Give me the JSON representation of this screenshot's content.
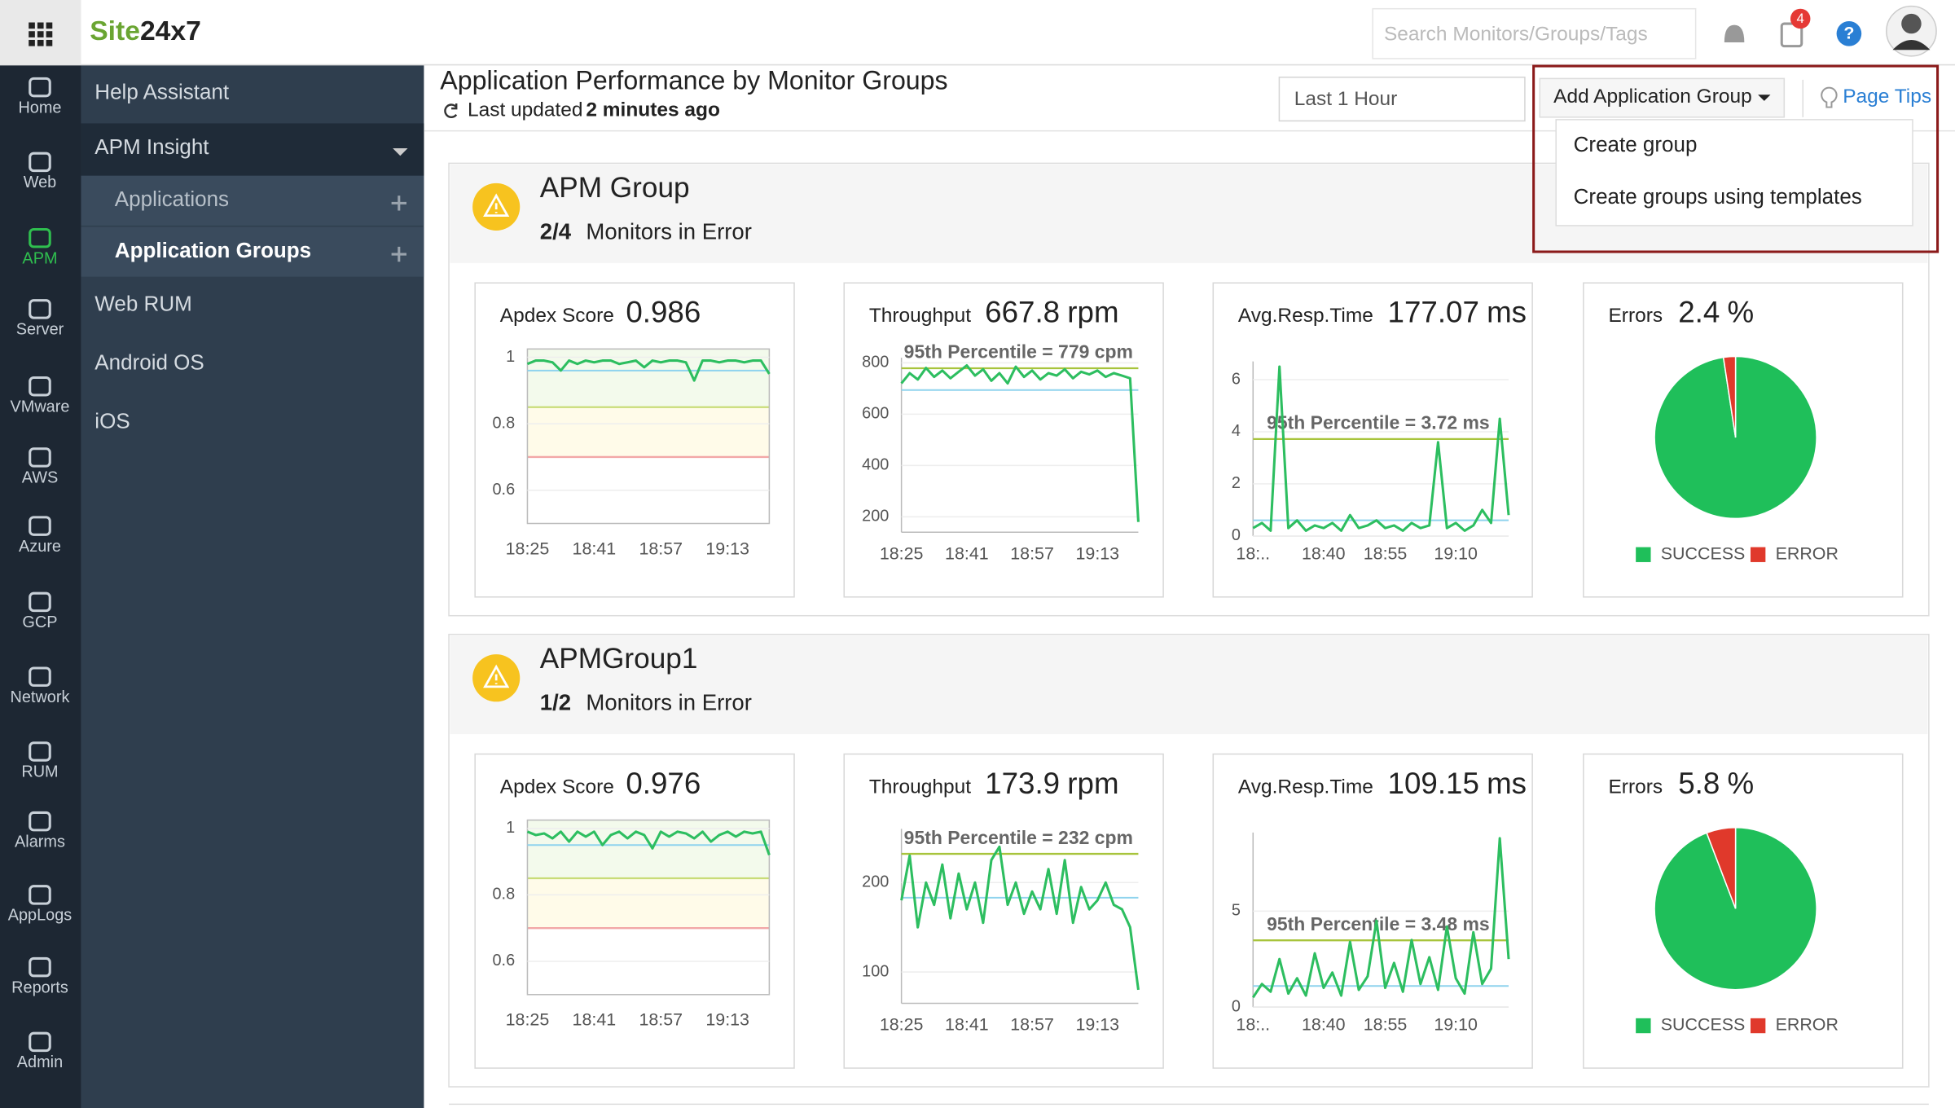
{
  "topbar": {
    "logo": {
      "prefix": "Site",
      "suffix": "24x7"
    },
    "search_placeholder": "Search Monitors/Groups/Tags",
    "notification_count": 4,
    "help_icon": "?"
  },
  "nav": [
    {
      "label": "Home"
    },
    {
      "label": "Web"
    },
    {
      "label": "APM",
      "active": true
    },
    {
      "label": "Server"
    },
    {
      "label": "VMware"
    },
    {
      "label": "AWS"
    },
    {
      "label": "Azure"
    },
    {
      "label": "GCP"
    },
    {
      "label": "Network"
    },
    {
      "label": "RUM"
    },
    {
      "label": "Alarms"
    },
    {
      "label": "AppLogs"
    },
    {
      "label": "Reports"
    },
    {
      "label": "Admin"
    }
  ],
  "menu": [
    {
      "label": "Help Assistant"
    },
    {
      "label": "APM Insight",
      "expanded": true
    },
    {
      "label": "Applications",
      "sub": true
    },
    {
      "label": "Application Groups",
      "sub": true,
      "selected": true
    },
    {
      "label": "Web RUM"
    },
    {
      "label": "Android OS"
    },
    {
      "label": "iOS"
    }
  ],
  "header": {
    "title": "Application Performance by Monitor Groups",
    "last_updated_label": "Last updated",
    "last_updated_value": "2 minutes ago",
    "time_range": "Last 1 Hour",
    "add_button": "Add Application Group",
    "page_tips": "Page Tips",
    "dropdown": [
      "Create group",
      "Create groups using templates"
    ]
  },
  "groups": [
    {
      "name": "APM Group",
      "error_count": "2/4",
      "monitors_label": "Monitors in Error",
      "widgets": [
        {
          "label": "Apdex Score",
          "value": 0.986,
          "chart": {
            "type": "line",
            "color": "#2dbe60",
            "ylim": [
              0.5,
              1.025
            ],
            "yticks": [
              1,
              0.8,
              0.6
            ],
            "grid": true,
            "average": 0.96,
            "thresholds": [
              {
                "value": 0.85,
                "color": "#c8dc78"
              },
              {
                "value": 0.7,
                "color": "#f2a7a7"
              }
            ],
            "categories": [
              "18:25",
              null,
              null,
              null,
              null,
              null,
              null,
              null,
              "18:41",
              null,
              null,
              null,
              null,
              null,
              null,
              null,
              "18:57",
              null,
              null,
              null,
              null,
              null,
              null,
              null,
              "19:13",
              null,
              null,
              null,
              null,
              null
            ],
            "values": [
              0.98,
              0.99,
              0.99,
              0.985,
              0.96,
              0.99,
              0.98,
              0.99,
              0.985,
              0.99,
              0.99,
              0.98,
              0.985,
              0.99,
              0.97,
              0.99,
              0.985,
              0.99,
              0.99,
              0.985,
              0.93,
              0.99,
              0.99,
              0.985,
              0.99,
              0.99,
              0.985,
              0.99,
              0.99,
              0.95
            ]
          }
        },
        {
          "label": "Throughput",
          "value": 667.8,
          "unit": "rpm",
          "chart": {
            "type": "line",
            "color": "#2dbe60",
            "ylim": [
              140,
              820
            ],
            "yticks": [
              800,
              600,
              400,
              200
            ],
            "grid": true,
            "average": 694,
            "percentile": {
              "value": 779,
              "label": "95th Percentile = 779 cpm"
            },
            "categories": [
              "18:25",
              null,
              null,
              null,
              null,
              null,
              null,
              null,
              "18:41",
              null,
              null,
              null,
              null,
              null,
              null,
              null,
              "18:57",
              null,
              null,
              null,
              null,
              null,
              null,
              null,
              "19:13",
              null,
              null,
              null,
              null,
              null
            ],
            "values": [
              720,
              760,
              735,
              780,
              745,
              770,
              740,
              765,
              790,
              750,
              775,
              730,
              760,
              720,
              785,
              745,
              770,
              735,
              760,
              750,
              775,
              740,
              765,
              755,
              770,
              745,
              760,
              750,
              740,
              180
            ]
          }
        },
        {
          "label": "Avg.Resp.Time",
          "value": 177.07,
          "unit": "ms",
          "chart": {
            "type": "line",
            "color": "#2dbe60",
            "ylim": [
              0,
              6.7
            ],
            "yticks": [
              6,
              4,
              2,
              0
            ],
            "grid": true,
            "average": 0.6,
            "percentile": {
              "value": 3.72,
              "label": "95th Percentile = 3.72 ms"
            },
            "categories": [
              "18:..",
              null,
              null,
              null,
              null,
              null,
              null,
              null,
              "18:40",
              null,
              null,
              null,
              null,
              null,
              null,
              "18:55",
              null,
              null,
              null,
              null,
              null,
              null,
              null,
              "19:10",
              null,
              null,
              null,
              null,
              null,
              null
            ],
            "values": [
              0.3,
              0.5,
              0.2,
              6.5,
              0.3,
              0.6,
              0.2,
              0.4,
              0.3,
              0.5,
              0.2,
              0.8,
              0.3,
              0.4,
              0.6,
              0.3,
              0.4,
              0.2,
              0.5,
              0.3,
              0.4,
              3.6,
              0.3,
              0.5,
              0.2,
              0.4,
              1.0,
              0.5,
              4.5,
              0.8
            ]
          }
        },
        {
          "label": "Errors",
          "unit": "%",
          "chart": {
            "type": "pie",
            "categories": [
              "SUCCESS",
              "ERROR"
            ],
            "values": [
              97.6,
              2.4
            ],
            "colors": [
              "#1fbf5a",
              "#e0392b"
            ]
          }
        }
      ]
    },
    {
      "name": "APMGroup1",
      "error_count": "1/2",
      "monitors_label": "Monitors in Error",
      "widgets": [
        {
          "label": "Apdex Score",
          "value": 0.976,
          "chart": {
            "type": "line",
            "color": "#2dbe60",
            "ylim": [
              0.5,
              1.025
            ],
            "yticks": [
              1,
              0.8,
              0.6
            ],
            "grid": true,
            "average": 0.95,
            "thresholds": [
              {
                "value": 0.85,
                "color": "#c8dc78"
              },
              {
                "value": 0.7,
                "color": "#f2a7a7"
              }
            ],
            "categories": [
              "18:25",
              null,
              null,
              null,
              null,
              null,
              null,
              null,
              "18:41",
              null,
              null,
              null,
              null,
              null,
              null,
              null,
              "18:57",
              null,
              null,
              null,
              null,
              null,
              null,
              null,
              "19:13",
              null,
              null,
              null,
              null,
              null
            ],
            "values": [
              0.99,
              0.98,
              0.985,
              0.97,
              0.99,
              0.96,
              0.99,
              0.975,
              0.99,
              0.95,
              0.98,
              0.99,
              0.97,
              0.99,
              0.98,
              0.94,
              0.99,
              0.975,
              0.99,
              0.985,
              0.97,
              0.99,
              0.96,
              0.98,
              0.99,
              0.975,
              0.99,
              0.985,
              0.99,
              0.92
            ]
          }
        },
        {
          "label": "Throughput",
          "value": 173.9,
          "unit": "rpm",
          "chart": {
            "type": "line",
            "color": "#2dbe60",
            "ylim": [
              65,
              260
            ],
            "yticks": [
              200,
              100
            ],
            "grid": true,
            "average": 183,
            "percentile": {
              "value": 232,
              "label": "95th Percentile = 232 cpm"
            },
            "categories": [
              "18:25",
              null,
              null,
              null,
              null,
              null,
              null,
              null,
              "18:41",
              null,
              null,
              null,
              null,
              null,
              null,
              null,
              "18:57",
              null,
              null,
              null,
              null,
              null,
              null,
              null,
              "19:13",
              null,
              null,
              null,
              null,
              null
            ],
            "values": [
              180,
              230,
              150,
              200,
              175,
              220,
              160,
              210,
              170,
              200,
              155,
              225,
              240,
              175,
              200,
              165,
              190,
              170,
              215,
              165,
              225,
              155,
              195,
              170,
              180,
              200,
              175,
              170,
              150,
              80
            ]
          }
        },
        {
          "label": "Avg.Resp.Time",
          "value": 109.15,
          "unit": "ms",
          "chart": {
            "type": "line",
            "color": "#2dbe60",
            "ylim": [
              0,
              9.1
            ],
            "yticks": [
              5,
              0
            ],
            "grid": true,
            "average": 1.1,
            "percentile": {
              "value": 3.48,
              "label": "95th Percentile = 3.48 ms"
            },
            "categories": [
              "18:..",
              null,
              null,
              null,
              null,
              null,
              null,
              null,
              "18:40",
              null,
              null,
              null,
              null,
              null,
              null,
              "18:55",
              null,
              null,
              null,
              null,
              null,
              null,
              null,
              "19:10",
              null,
              null,
              null,
              null,
              null,
              null
            ],
            "values": [
              0.5,
              1.2,
              0.8,
              2.5,
              0.7,
              1.5,
              0.6,
              2.8,
              1.0,
              1.8,
              0.6,
              3.4,
              0.9,
              1.6,
              4.5,
              1.0,
              2.3,
              0.8,
              3.5,
              1.2,
              2.6,
              0.9,
              4.2,
              1.5,
              0.7,
              3.9,
              1.2,
              2.0,
              8.8,
              2.5
            ]
          }
        },
        {
          "label": "Errors",
          "unit": "%",
          "chart": {
            "type": "pie",
            "categories": [
              "SUCCESS",
              "ERROR"
            ],
            "values": [
              94.2,
              5.8
            ],
            "colors": [
              "#1fbf5a",
              "#e0392b"
            ]
          }
        }
      ]
    }
  ]
}
